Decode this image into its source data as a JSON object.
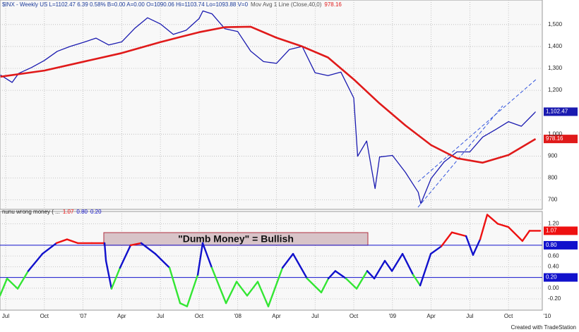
{
  "chart_data": [
    {
      "type": "line",
      "title": "$INX - Weekly US L=1102.47 6.39 0.58% B=0.00 A=0.00 O=1090.06 Hi=1103.74 Lo=1093.88 V=0",
      "ma_title": "Mov Avg 1 Line (Close,40,0)",
      "xlim": [
        -0.44,
        41.62
      ],
      "ylim": [
        657,
        1612
      ],
      "yticks": [
        {
          "value": 1500,
          "label": "1,500"
        },
        {
          "value": 1400,
          "label": "1,400"
        },
        {
          "value": 1300,
          "label": "1,300"
        },
        {
          "value": 1200,
          "label": "1,200"
        },
        {
          "value": 1000,
          "label": "1,000"
        },
        900,
        800,
        700
      ],
      "grid": true,
      "series": [
        {
          "color": "#1a1ab0",
          "width": 1.3,
          "end_label": "1,102.47",
          "x": [
            -0.4,
            0.5,
            1,
            2,
            3,
            4,
            5,
            6,
            7,
            8,
            9,
            10,
            11,
            12,
            13,
            14,
            15,
            15.3,
            16,
            17,
            18,
            19,
            20,
            21,
            22,
            23,
            24,
            25,
            26,
            27,
            27.3,
            28,
            28.65,
            29,
            30,
            31,
            32,
            32.2,
            33,
            34,
            35,
            36,
            37,
            38,
            39,
            40,
            41,
            41.1
          ],
          "values": [
            1270,
            1236,
            1277,
            1304,
            1336,
            1378,
            1400,
            1418,
            1438,
            1407,
            1421,
            1482,
            1531,
            1503,
            1455,
            1474,
            1527,
            1562,
            1549,
            1481,
            1468,
            1379,
            1331,
            1323,
            1386,
            1400,
            1280,
            1267,
            1283,
            1165,
            899,
            969,
            752,
            896,
            903,
            826,
            735,
            683,
            798,
            873,
            919,
            919,
            987,
            1021,
            1057,
            1036,
            1096,
            1102.47
          ]
        },
        {
          "color": "#e01a1a",
          "width": 2.6,
          "end_label": "978.16",
          "x": [
            -0.4,
            3,
            6,
            9,
            12,
            15,
            17,
            19,
            21,
            23,
            25,
            27,
            29,
            31,
            33,
            35,
            37,
            39,
            41.1
          ],
          "values": [
            1262,
            1290,
            1330,
            1370,
            1420,
            1465,
            1488,
            1490,
            1440,
            1400,
            1350,
            1250,
            1140,
            1040,
            950,
            890,
            870,
            905,
            978.16
          ]
        }
      ]
    },
    {
      "type": "line",
      "title": "nunu wrong money ( ...",
      "annotation": "\"Dumb Money\" = Bullish",
      "xlim": [
        -0.44,
        41.62
      ],
      "ylim": [
        -0.41,
        1.43
      ],
      "xticks": [
        {
          "value": 0,
          "label": "Jul"
        },
        {
          "value": 3,
          "label": "Oct"
        },
        {
          "value": 6,
          "label": "'07"
        },
        {
          "value": 9,
          "label": "Apr"
        },
        {
          "value": 12,
          "label": "Jul"
        },
        {
          "value": 15,
          "label": "Oct"
        },
        {
          "value": 18,
          "label": "'08"
        },
        {
          "value": 21,
          "label": "Apr"
        },
        {
          "value": 24,
          "label": "Jul"
        },
        {
          "value": 27,
          "label": "Oct"
        },
        {
          "value": 30,
          "label": "'09"
        },
        {
          "value": 33,
          "label": "Apr"
        },
        {
          "value": 36,
          "label": "Jul"
        },
        {
          "value": 39,
          "label": "Oct"
        },
        {
          "value": 42,
          "label": "'10"
        }
      ],
      "yticks": [
        {
          "value": 1.2,
          "label": "1.20"
        },
        {
          "value": 0.6,
          "label": "0.60"
        },
        {
          "value": 0.4,
          "label": "0.40"
        },
        {
          "value": 0,
          "label": "0.00"
        },
        {
          "value": -0.2,
          "label": "-0.20"
        }
      ],
      "grid": true,
      "levels": [
        {
          "value": 0.8,
          "label": "0.80",
          "color": "#1111cc"
        },
        {
          "value": 0.2,
          "label": "0.20",
          "color": "#1111cc"
        }
      ],
      "band_colors": [
        "#33e633",
        "#1111cc",
        "#ee1111"
      ],
      "series": [
        {
          "width": 2.4,
          "end_label": "1.07",
          "x": [
            -0.44,
            0.11,
            0.93,
            1.75,
            2.85,
            3.94,
            4.76,
            5.59,
            6.68,
            7.67,
            7.78,
            8.21,
            8.87,
            9.69,
            10.51,
            11.61,
            12.71,
            13.53,
            14.07,
            14.9,
            15.28,
            15.99,
            17.09,
            17.91,
            18.73,
            19.55,
            20.37,
            21.47,
            22.29,
            23.38,
            24.48,
            25.03,
            25.57,
            26.4,
            27.22,
            28.04,
            28.59,
            29.41,
            29.96,
            30.78,
            31.6,
            32.15,
            32.97,
            33.79,
            34.61,
            35.71,
            36.25,
            36.8,
            37.35,
            38.17,
            38.99,
            40.08,
            40.63,
            41.46
          ],
          "values": [
            -0.14,
            0.18,
            -0.01,
            0.32,
            0.64,
            0.84,
            0.91,
            0.84,
            0.84,
            0.84,
            0.51,
            -0.01,
            0.38,
            0.8,
            0.84,
            0.64,
            0.38,
            -0.28,
            -0.34,
            0.25,
            0.84,
            0.38,
            -0.28,
            0.12,
            -0.14,
            0.12,
            -0.34,
            0.38,
            0.64,
            0.18,
            -0.08,
            0.18,
            0.32,
            0.18,
            -0.01,
            0.32,
            0.18,
            0.51,
            0.32,
            0.64,
            0.25,
            0.05,
            0.64,
            0.78,
            1.04,
            0.97,
            0.62,
            0.91,
            1.37,
            1.2,
            1.14,
            0.88,
            1.07,
            1.07
          ]
        }
      ]
    }
  ],
  "footer": "Created with TradeStation"
}
